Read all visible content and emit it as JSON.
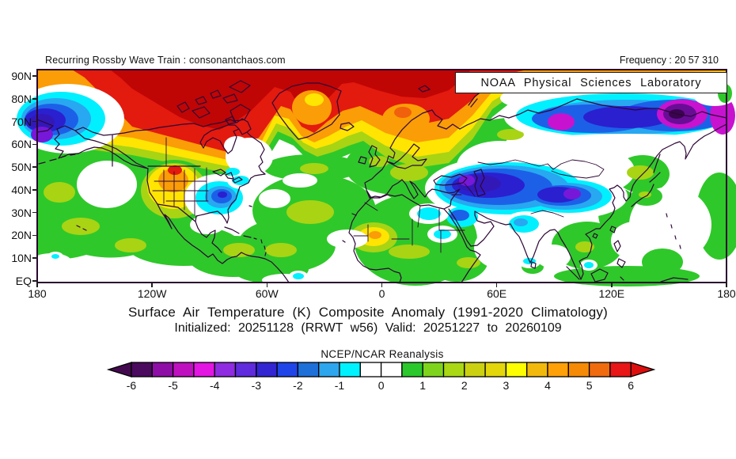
{
  "header": {
    "left_text": "Recurring Rossby Wave Train : consonantchaos.com",
    "right_text": "Frequency : 20 57 310"
  },
  "overlay_box": {
    "label": "NOAA Physical Sciences Laboratory"
  },
  "titles": {
    "line1": "Surface Air Temperature (K) Composite Anomaly (1991-2020 Climatology)",
    "line2": "Initialized: 20251128 (RRWT w56) Valid: 20251227 to 20260109"
  },
  "axes": {
    "lat_labels": [
      "90N",
      "80N",
      "70N",
      "60N",
      "50N",
      "40N",
      "30N",
      "20N",
      "10N",
      "EQ"
    ],
    "lon_labels": [
      "180",
      "120W",
      "60W",
      "0",
      "60E",
      "120E",
      "180"
    ]
  },
  "colorbar": {
    "label": "NCEP/NCAR Reanalysis",
    "tick_labels": [
      "-6",
      "-5",
      "-4",
      "-3",
      "-2",
      "-1",
      "0",
      "1",
      "2",
      "3",
      "4",
      "5",
      "6"
    ],
    "cell_colors": [
      "#4A0A5E",
      "#8E0DA6",
      "#BE10BE",
      "#E215E2",
      "#8F2BE0",
      "#5F2BDC",
      "#3325D2",
      "#1F45E8",
      "#1E6FD8",
      "#2EA6EE",
      "#00F2FF",
      "#FFFFFF",
      "#FFFFFF",
      "#2BC82B",
      "#7ED41C",
      "#AAD814",
      "#CBD111",
      "#E3D60A",
      "#FEFE00",
      "#F2B90C",
      "#FFA008",
      "#F58A06",
      "#EF6B0E",
      "#E81616"
    ],
    "left_arrow_color": "#43094F",
    "right_arrow_color": "#DC0E0E"
  },
  "palette": {
    "green": "#2FC82A",
    "yellow_green": "#A8D414",
    "yellow": "#FFE501",
    "orange": "#FB9D06",
    "orange_red": "#F1600D",
    "red": "#E31A0E",
    "dark_red": "#C00505",
    "cyan": "#00F0FF",
    "light_blue": "#28A8F0",
    "blue": "#1C60E8",
    "deep_blue": "#2A20D0",
    "indigo": "#3318B8",
    "violet": "#7718D8",
    "magenta": "#C713CF",
    "purple": "#6A0D96",
    "dark_purple": "#3A0450",
    "coastline": "#2E0636",
    "background": "#FFFFFF"
  },
  "chart_data": {
    "type": "heatmap",
    "subtype": "filled-contour-anomaly-map",
    "variable": "Surface Air Temperature anomaly",
    "units": "K",
    "value_range": [
      -6,
      6
    ],
    "contour_step": 0.5,
    "lat_range": [
      "EQ",
      "90N"
    ],
    "lon_range": [
      "180W",
      "180E"
    ],
    "climatology": "1991-2020",
    "init_date": "20251128",
    "valid_period": "20251227 to 20260109",
    "source": "NCEP/NCAR Reanalysis",
    "notable_anomalies": [
      {
        "region": "Arctic / Northern Canada / Greenland flank",
        "sign": "warm",
        "approx_value": "+5 to +6"
      },
      {
        "region": "Western US / Rockies",
        "sign": "warm",
        "approx_value": "+2 to +4"
      },
      {
        "region": "Scandinavia",
        "sign": "warm",
        "approx_value": "+3 to +4"
      },
      {
        "region": "Greenland interior",
        "sign": "warm",
        "approx_value": "+3 to +4"
      },
      {
        "region": "Mauritania / Mali",
        "sign": "warm",
        "approx_value": "+2 to +3"
      },
      {
        "region": "Bering Sea / far-west Alaska",
        "sign": "cold",
        "approx_value": "-3 to -5"
      },
      {
        "region": "Northeast Siberia",
        "sign": "cold",
        "approx_value": "-4 to -6"
      },
      {
        "region": "Central Asia / Iran to Mongolia",
        "sign": "cold",
        "approx_value": "-3 to -5"
      },
      {
        "region": "Southeast US",
        "sign": "cold",
        "approx_value": "-2 to -3"
      },
      {
        "region": "Mid-latitude oceans",
        "sign": "warm",
        "approx_value": "+1 to +2"
      }
    ]
  }
}
